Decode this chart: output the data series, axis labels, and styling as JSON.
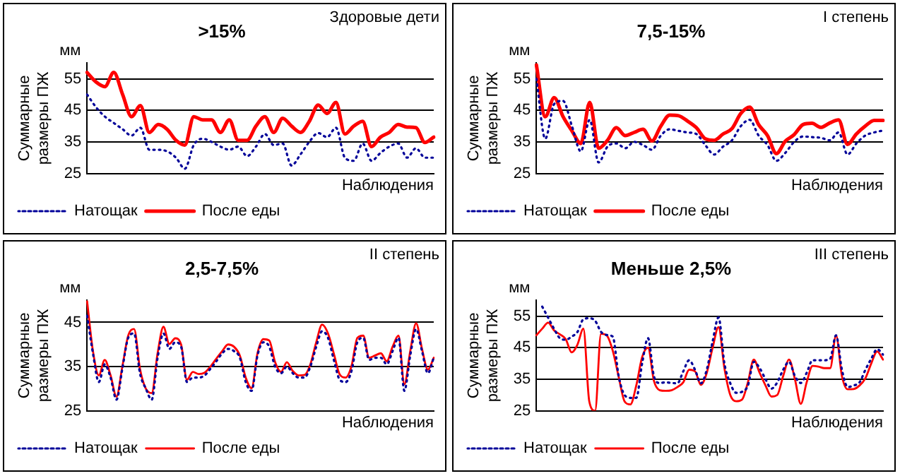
{
  "chart_data": [
    {
      "type": "line",
      "title": ">15%",
      "ylabel": "Суммарные размеры ПЖ",
      "xlabel": "Наблюдения",
      "annotations": [
        "Здоровые дети",
        "мм"
      ],
      "categories": [
        null,
        null,
        null,
        null,
        null,
        null,
        null,
        null,
        null,
        null,
        null,
        null,
        null,
        null,
        null,
        null,
        null,
        null,
        null,
        null,
        null,
        null,
        null,
        null,
        null,
        null,
        null,
        null,
        null,
        null,
        null,
        null,
        null,
        null,
        null,
        null,
        null,
        null,
        null,
        null
      ],
      "ylim": [
        25,
        60
      ],
      "yticks": [
        25,
        35,
        45,
        55
      ],
      "grid": "y",
      "legend": "bottom left",
      "tick_labels": "y",
      "marker": "none",
      "series": [
        {
          "name": "Натощак",
          "color": "#000099",
          "line_style": "dotted",
          "values": [
            50,
            46,
            43,
            41,
            39,
            37,
            39.5,
            32.5,
            32.5,
            32,
            30,
            26.5,
            34,
            36,
            35,
            33.5,
            32.5,
            33.5,
            30.5,
            33.5,
            37.5,
            34,
            34.5,
            27.5,
            31,
            35,
            37.8,
            36.5,
            39.5,
            30,
            29,
            34.5,
            29,
            31.5,
            33.5,
            34.5,
            30,
            33,
            30,
            30
          ]
        },
        {
          "name": "После еды",
          "color": "#ff0000",
          "line_style": "solid",
          "values": [
            57,
            54,
            52.5,
            57,
            50,
            43,
            46.5,
            38,
            40.5,
            39,
            35.5,
            34,
            43,
            42,
            42,
            38,
            42,
            35.5,
            35.5,
            40,
            43,
            38,
            42.5,
            40,
            38,
            41.5,
            46.7,
            44,
            47.5,
            37.5,
            40,
            41.5,
            33.5,
            36.5,
            38,
            40.5,
            39.7,
            39.5,
            34.8,
            36.5
          ]
        }
      ]
    },
    {
      "type": "line",
      "title": "7,5-15%",
      "ylabel": "Суммарные размеры ПЖ",
      "xlabel": "Наблюдения",
      "annotations": [
        "I степень",
        "мм"
      ],
      "categories": [
        null,
        null,
        null,
        null,
        null,
        null,
        null,
        null,
        null,
        null,
        null,
        null,
        null,
        null,
        null,
        null,
        null,
        null,
        null,
        null,
        null,
        null,
        null,
        null,
        null,
        null,
        null,
        null,
        null,
        null,
        null,
        null,
        null,
        null,
        null,
        null,
        null,
        null,
        null,
        null
      ],
      "ylim": [
        25,
        60
      ],
      "yticks": [
        25,
        35,
        45,
        55
      ],
      "grid": "y",
      "legend": "bottom left",
      "tick_labels": "y",
      "marker": "none",
      "series": [
        {
          "name": "Натощак",
          "color": "#000099",
          "line_style": "dotted",
          "values": [
            55,
            36,
            47,
            48,
            40,
            32,
            42,
            28.5,
            33.5,
            34.5,
            33,
            35,
            34,
            32.5,
            37,
            39,
            38.5,
            38,
            37.5,
            34,
            31,
            33.5,
            35.5,
            40,
            42,
            37,
            34,
            29,
            31.5,
            35,
            36.7,
            36.5,
            36.3,
            35.5,
            38,
            31,
            34.5,
            37,
            38,
            38.6
          ]
        },
        {
          "name": "После еды",
          "color": "#ff0000",
          "line_style": "solid",
          "values": [
            59.4,
            43,
            49,
            43,
            38.5,
            34.5,
            47.5,
            33,
            35.5,
            39.5,
            37,
            38,
            39,
            35.3,
            40,
            43.5,
            43.3,
            41.6,
            39.5,
            36,
            35.5,
            37.5,
            39.2,
            44,
            46,
            40.5,
            37,
            31.3,
            35.2,
            37.3,
            40.5,
            40.9,
            39.6,
            41,
            42,
            34.2,
            37.5,
            40,
            41.8,
            41.8
          ]
        }
      ]
    },
    {
      "type": "line",
      "title": "2,5-7,5%",
      "ylabel": "Суммарные размеры ПЖ",
      "xlabel": "Наблюдения",
      "annotations": [
        "II степень",
        "мм"
      ],
      "categories": [
        null,
        null,
        null,
        null,
        null,
        null,
        null,
        null,
        null,
        null,
        null,
        null,
        null,
        null,
        null,
        null,
        null,
        null,
        null,
        null,
        null,
        null,
        null,
        null,
        null,
        null,
        null,
        null,
        null,
        null,
        null,
        null,
        null,
        null,
        null,
        null,
        null,
        null,
        null,
        null,
        null,
        null,
        null,
        null,
        null,
        null,
        null,
        null,
        null,
        null,
        null,
        null,
        null,
        null,
        null,
        null,
        null,
        null,
        null,
        null
      ],
      "ylim": [
        25,
        50
      ],
      "yticks": [
        25,
        35,
        45
      ],
      "grid": "y",
      "legend": "bottom left",
      "tick_labels": "y",
      "marker": "none",
      "series": [
        {
          "name": "Натощак",
          "color": "#000099",
          "line_style": "dotted",
          "values": [
            46.5,
            38,
            31.5,
            35.5,
            32.5,
            27.5,
            34.5,
            41.5,
            42.5,
            33.5,
            30,
            27.5,
            37,
            42.5,
            39,
            40.5,
            39.5,
            31.5,
            32.5,
            32.5,
            33,
            34.5,
            36.2,
            38,
            39,
            38.5,
            37,
            31.5,
            29.5,
            37.5,
            40.5,
            39.5,
            35,
            33.5,
            35,
            33.5,
            32.5,
            32.5,
            35,
            39.5,
            43,
            41.5,
            36.5,
            32,
            31.5,
            34,
            40.5,
            41.5,
            36.5,
            37,
            37,
            35.5,
            38.5,
            41.5,
            29.5,
            37.5,
            43.5,
            38.5,
            33.5,
            37
          ]
        },
        {
          "name": "После еды",
          "color": "#ff0000",
          "line_style": "solid",
          "values": [
            49.8,
            38.5,
            33,
            36.5,
            33,
            28.2,
            35,
            42,
            43.5,
            34.5,
            30,
            29,
            38,
            44,
            40.1,
            41.4,
            40,
            32,
            33.8,
            33.3,
            33.6,
            35,
            36.8,
            38.5,
            40,
            39.5,
            37.5,
            32.5,
            30.1,
            38,
            41.2,
            40.9,
            36,
            33.8,
            36,
            34,
            33,
            33.1,
            35.5,
            40.5,
            44.5,
            42.5,
            37.9,
            33.2,
            32.5,
            35.1,
            41.5,
            42,
            37,
            37.5,
            38,
            36.2,
            39.5,
            42,
            31,
            38.5,
            44.8,
            39,
            34.3,
            37
          ]
        }
      ]
    },
    {
      "type": "line",
      "title": "Меньше 2,5%",
      "ylabel": "Суммарные размеры ПЖ",
      "xlabel": "Наблюдения",
      "annotations": [
        "III степень",
        "мм"
      ],
      "categories": [
        null,
        null,
        null,
        null,
        null,
        null,
        null,
        null,
        null,
        null,
        null,
        null,
        null,
        null,
        null,
        null,
        null,
        null,
        null,
        null,
        null,
        null,
        null,
        null,
        null,
        null,
        null,
        null,
        null,
        null,
        null,
        null,
        null,
        null,
        null,
        null,
        null,
        null,
        null,
        null,
        null,
        null,
        null,
        null,
        null,
        null,
        null,
        null,
        null,
        null,
        null,
        null,
        null,
        null,
        null,
        null,
        null,
        null,
        null,
        null
      ],
      "ylim": [
        25,
        60
      ],
      "yticks": [
        25,
        35,
        45,
        55
      ],
      "grid": "y",
      "legend": "bottom left",
      "tick_labels": "y",
      "marker": "none",
      "series": [
        {
          "name": "Натощак",
          "color": "#000099",
          "line_style": "dotted",
          "values": [
            null,
            58,
            54.5,
            51,
            48,
            47.5,
            48.5,
            50,
            54,
            54.3,
            53.5,
            50,
            49,
            48.5,
            36,
            30,
            29.1,
            29.1,
            40,
            48,
            36,
            33.8,
            34,
            33.8,
            33.7,
            37.5,
            41,
            38,
            33.7,
            38,
            47,
            54.6,
            40,
            33.7,
            30.7,
            31,
            33,
            40.5,
            38.5,
            35,
            32,
            34,
            38,
            40.5,
            36,
            33.8,
            37,
            41,
            41,
            41,
            41.5,
            48.9,
            38,
            32.5,
            33,
            34,
            38,
            41.5,
            44.5,
            42.8
          ]
        },
        {
          "name": "После еды",
          "color": "#ff0000",
          "line_style": "solid",
          "values": [
            48.9,
            51,
            52.9,
            50.5,
            49.2,
            47.7,
            43.5,
            46,
            51,
            28,
            25,
            49.4,
            48.8,
            44,
            35.8,
            28,
            27,
            33,
            42,
            45,
            34.5,
            31.5,
            31.3,
            31.5,
            32.5,
            34,
            38,
            37.5,
            33.2,
            37,
            45,
            51.5,
            38.5,
            30,
            28,
            28.5,
            34,
            41.2,
            37,
            33,
            29.5,
            30,
            36,
            41.2,
            35,
            27.2,
            34,
            39.2,
            39,
            38.5,
            38.5,
            48.9,
            36,
            31.8,
            31.9,
            33,
            35.3,
            40,
            43.8,
            41.2
          ]
        }
      ]
    }
  ]
}
